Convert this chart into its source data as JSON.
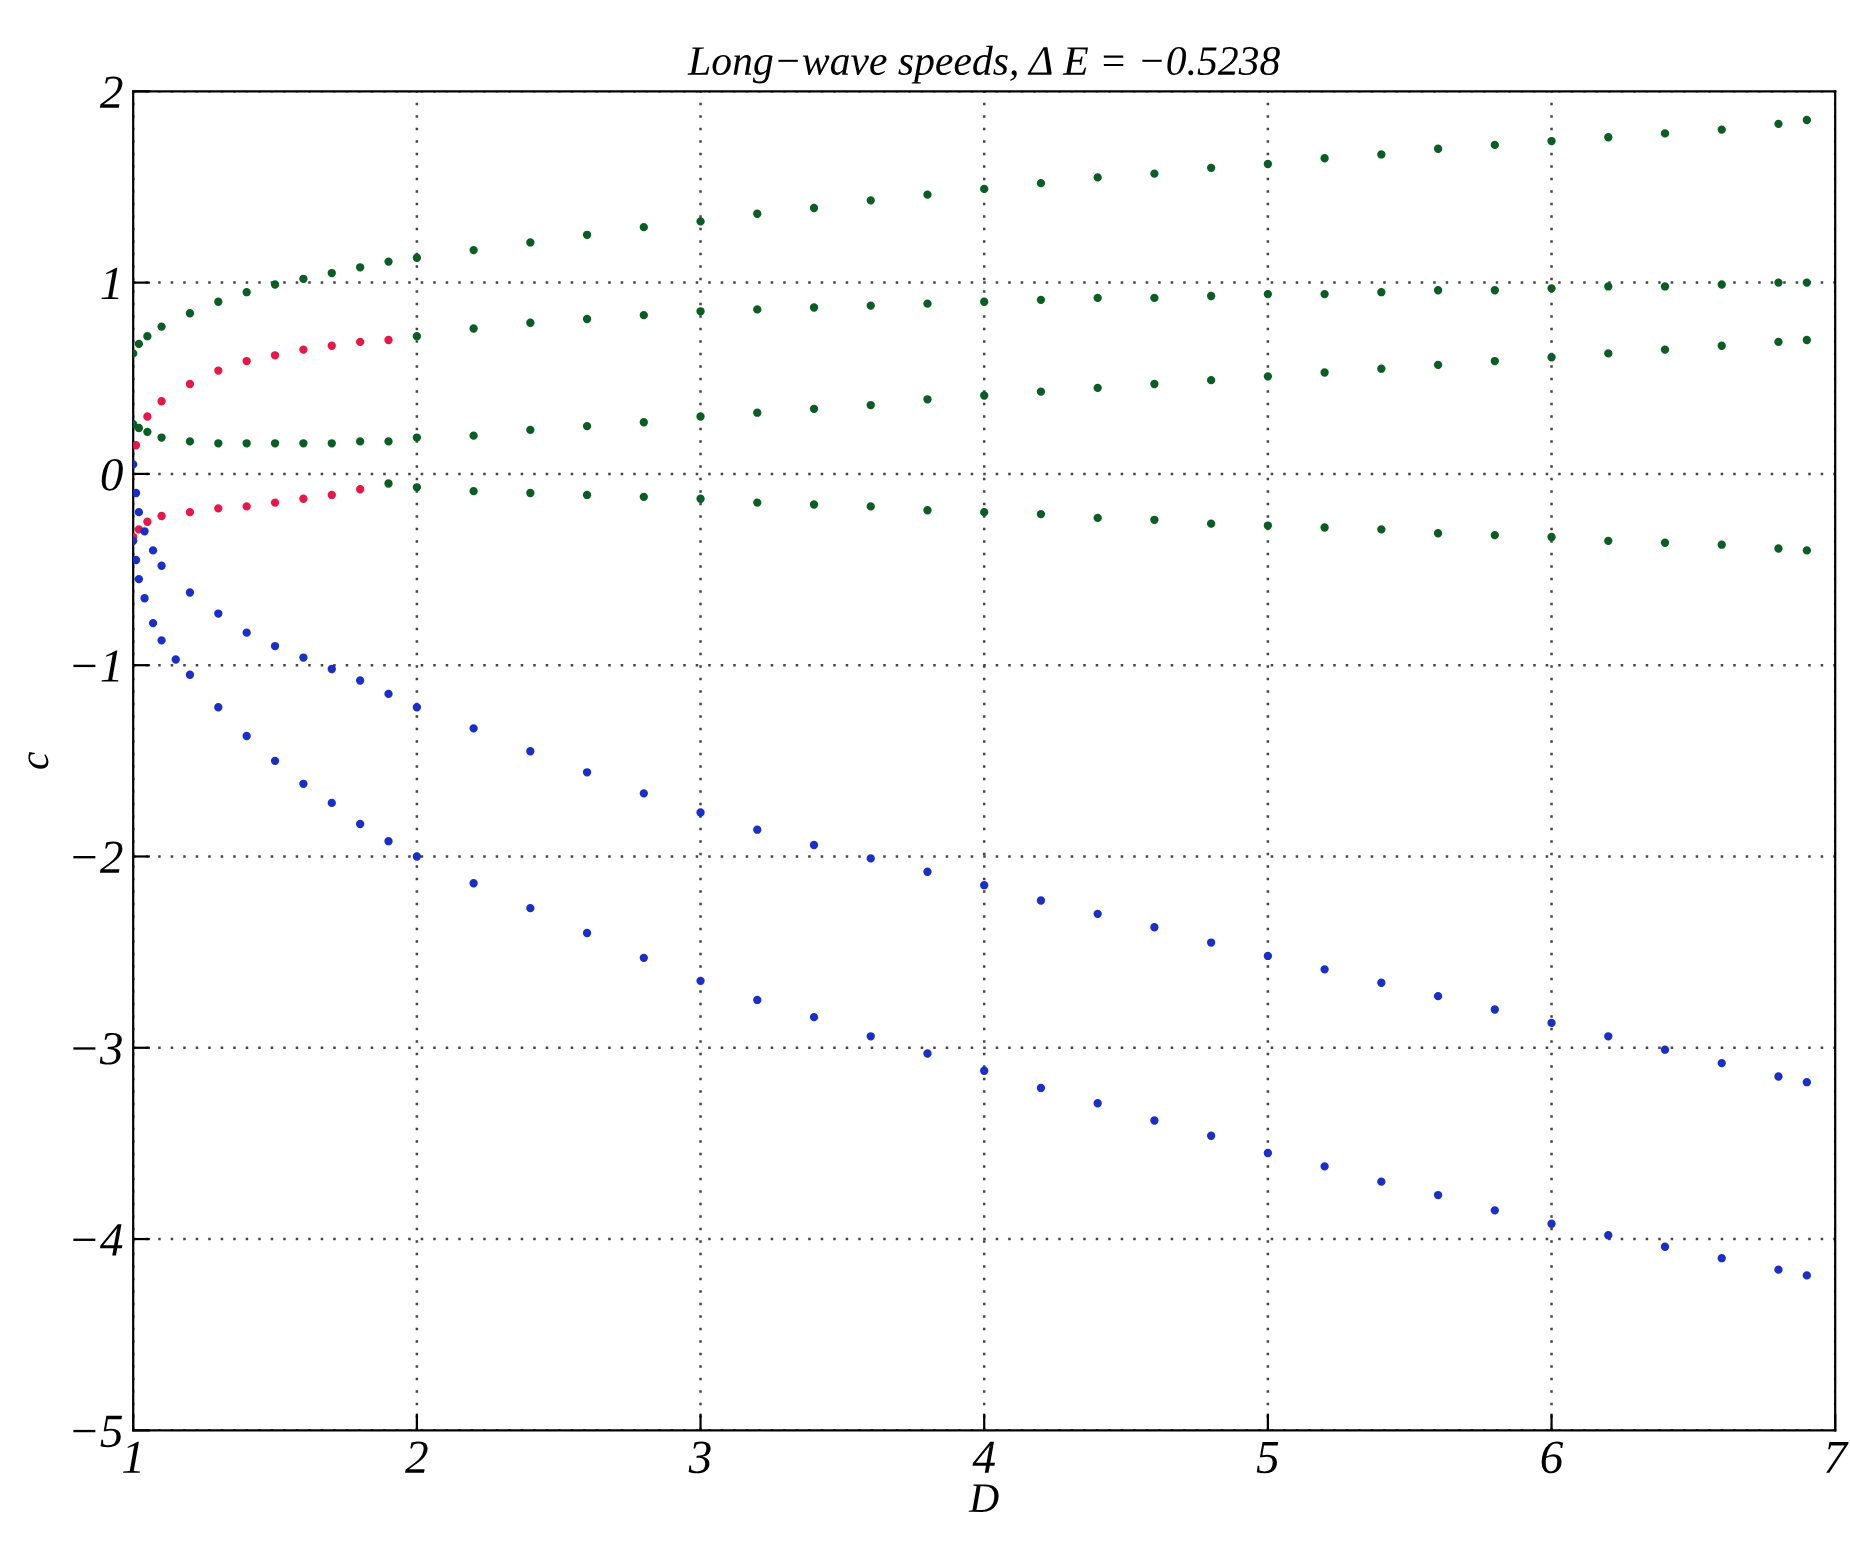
{
  "chart_data": {
    "type": "scatter",
    "title": "Long−wave speeds, Δ E = −0.5238",
    "xlabel": "D",
    "ylabel": "c",
    "xlim": [
      1,
      7
    ],
    "ylim": [
      -5,
      2
    ],
    "xticks": [
      1,
      2,
      3,
      4,
      5,
      6,
      7
    ],
    "yticks": [
      -5,
      -4,
      -3,
      -2,
      -1,
      0,
      1,
      2
    ],
    "grid": true,
    "marker": "circle",
    "series": [
      {
        "color": "#0b5e23",
        "x": [
          1.0,
          1.02,
          1.05,
          1.1,
          1.2,
          1.3,
          1.4,
          1.5,
          1.6,
          1.7,
          1.8,
          1.9,
          2.0,
          2.2,
          2.4,
          2.6,
          2.8,
          3.0,
          3.2,
          3.4,
          3.6,
          3.8,
          4.0,
          4.2,
          4.4,
          4.6,
          4.8,
          5.0,
          5.2,
          5.4,
          5.6,
          5.8,
          6.0,
          6.2,
          6.4,
          6.6,
          6.8,
          6.9
        ],
        "values": [
          0.63,
          0.68,
          0.72,
          0.77,
          0.84,
          0.9,
          0.95,
          0.99,
          1.02,
          1.05,
          1.08,
          1.11,
          1.13,
          1.17,
          1.21,
          1.25,
          1.29,
          1.32,
          1.36,
          1.39,
          1.43,
          1.46,
          1.49,
          1.52,
          1.55,
          1.57,
          1.6,
          1.62,
          1.65,
          1.67,
          1.7,
          1.72,
          1.74,
          1.76,
          1.78,
          1.8,
          1.83,
          1.85
        ]
      },
      {
        "color": "#e8174a",
        "x": [
          1.01,
          1.05,
          1.1,
          1.2,
          1.3,
          1.4,
          1.5,
          1.6,
          1.7,
          1.8,
          1.9
        ],
        "values": [
          0.15,
          0.3,
          0.38,
          0.47,
          0.54,
          0.59,
          0.62,
          0.65,
          0.67,
          0.69,
          0.7
        ]
      },
      {
        "color": "#0b5e23",
        "x": [
          2.0,
          2.2,
          2.4,
          2.6,
          2.8,
          3.0,
          3.2,
          3.4,
          3.6,
          3.8,
          4.0,
          4.2,
          4.4,
          4.6,
          4.8,
          5.0,
          5.2,
          5.4,
          5.6,
          5.8,
          6.0,
          6.2,
          6.4,
          6.6,
          6.8,
          6.9
        ],
        "values": [
          0.72,
          0.76,
          0.79,
          0.81,
          0.83,
          0.85,
          0.86,
          0.87,
          0.88,
          0.89,
          0.9,
          0.91,
          0.92,
          0.92,
          0.93,
          0.94,
          0.94,
          0.95,
          0.96,
          0.96,
          0.97,
          0.98,
          0.98,
          0.99,
          1.0,
          1.0
        ]
      },
      {
        "color": "#0b5e23",
        "x": [
          1.0,
          1.02,
          1.05,
          1.1,
          1.2,
          1.3,
          1.4,
          1.5,
          1.6,
          1.7,
          1.8,
          1.9,
          2.0,
          2.2,
          2.4,
          2.6,
          2.8,
          3.0,
          3.2,
          3.4,
          3.6,
          3.8,
          4.0,
          4.2,
          4.4,
          4.6,
          4.8,
          5.0,
          5.2,
          5.4,
          5.6,
          5.8,
          6.0,
          6.2,
          6.4,
          6.6,
          6.8,
          6.9
        ],
        "values": [
          0.26,
          0.24,
          0.22,
          0.19,
          0.17,
          0.16,
          0.16,
          0.16,
          0.16,
          0.16,
          0.17,
          0.17,
          0.19,
          0.2,
          0.23,
          0.25,
          0.27,
          0.3,
          0.32,
          0.34,
          0.36,
          0.39,
          0.41,
          0.43,
          0.45,
          0.47,
          0.49,
          0.51,
          0.53,
          0.55,
          0.57,
          0.59,
          0.61,
          0.63,
          0.65,
          0.67,
          0.69,
          0.7
        ]
      },
      {
        "color": "#e8174a",
        "x": [
          1.0,
          1.02,
          1.05,
          1.1,
          1.2,
          1.3,
          1.4,
          1.5,
          1.6,
          1.7,
          1.8
        ],
        "values": [
          -0.33,
          -0.29,
          -0.25,
          -0.22,
          -0.2,
          -0.18,
          -0.17,
          -0.15,
          -0.13,
          -0.11,
          -0.08
        ]
      },
      {
        "color": "#0b5e23",
        "x": [
          1.9,
          2.0,
          2.2,
          2.4,
          2.6,
          2.8,
          3.0,
          3.2,
          3.4,
          3.6,
          3.8,
          4.0,
          4.2,
          4.4,
          4.6,
          4.8,
          5.0,
          5.2,
          5.4,
          5.6,
          5.8,
          6.0,
          6.2,
          6.4,
          6.6,
          6.8,
          6.9
        ],
        "values": [
          -0.05,
          -0.07,
          -0.09,
          -0.1,
          -0.11,
          -0.12,
          -0.13,
          -0.15,
          -0.16,
          -0.17,
          -0.19,
          -0.2,
          -0.21,
          -0.23,
          -0.24,
          -0.26,
          -0.27,
          -0.28,
          -0.29,
          -0.31,
          -0.32,
          -0.33,
          -0.35,
          -0.36,
          -0.37,
          -0.39,
          -0.4
        ]
      },
      {
        "color": "#1a2fc8",
        "x": [
          1.0,
          1.01,
          1.02,
          1.04,
          1.07,
          1.1,
          1.2,
          1.3,
          1.4,
          1.5,
          1.6,
          1.7,
          1.8,
          1.9,
          2.0,
          2.2,
          2.4,
          2.6,
          2.8,
          3.0,
          3.2,
          3.4,
          3.6,
          3.8,
          4.0,
          4.2,
          4.4,
          4.6,
          4.8,
          5.0,
          5.2,
          5.4,
          5.6,
          5.8,
          6.0,
          6.2,
          6.4,
          6.6,
          6.8,
          6.9
        ],
        "values": [
          0.05,
          -0.1,
          -0.2,
          -0.3,
          -0.4,
          -0.48,
          -0.62,
          -0.73,
          -0.83,
          -0.9,
          -0.96,
          -1.02,
          -1.08,
          -1.15,
          -1.22,
          -1.33,
          -1.45,
          -1.56,
          -1.67,
          -1.77,
          -1.86,
          -1.94,
          -2.01,
          -2.08,
          -2.15,
          -2.23,
          -2.3,
          -2.37,
          -2.45,
          -2.52,
          -2.59,
          -2.66,
          -2.73,
          -2.8,
          -2.87,
          -2.94,
          -3.01,
          -3.08,
          -3.15,
          -3.18
        ]
      },
      {
        "color": "#1a2fc8",
        "x": [
          1.0,
          1.01,
          1.02,
          1.04,
          1.07,
          1.1,
          1.15,
          1.2,
          1.3,
          1.4,
          1.5,
          1.6,
          1.7,
          1.8,
          1.9,
          2.0,
          2.2,
          2.4,
          2.6,
          2.8,
          3.0,
          3.2,
          3.4,
          3.6,
          3.8,
          4.0,
          4.2,
          4.4,
          4.6,
          4.8,
          5.0,
          5.2,
          5.4,
          5.6,
          5.8,
          6.0,
          6.2,
          6.4,
          6.6,
          6.8,
          6.9
        ],
        "values": [
          -0.35,
          -0.45,
          -0.55,
          -0.65,
          -0.78,
          -0.87,
          -0.97,
          -1.05,
          -1.22,
          -1.37,
          -1.5,
          -1.62,
          -1.72,
          -1.83,
          -1.92,
          -2.0,
          -2.14,
          -2.27,
          -2.4,
          -2.53,
          -2.65,
          -2.75,
          -2.84,
          -2.94,
          -3.03,
          -3.12,
          -3.21,
          -3.29,
          -3.38,
          -3.46,
          -3.55,
          -3.62,
          -3.7,
          -3.77,
          -3.85,
          -3.92,
          -3.98,
          -4.04,
          -4.1,
          -4.16,
          -4.19
        ]
      }
    ]
  }
}
